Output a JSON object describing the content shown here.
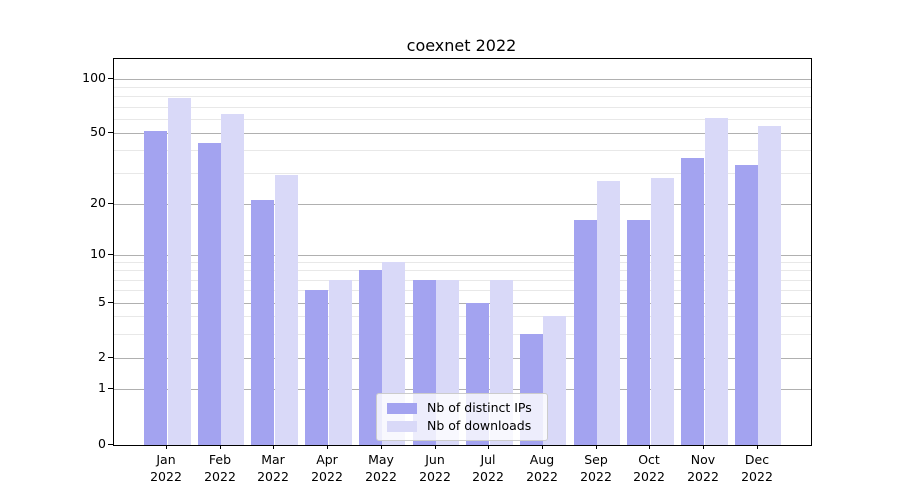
{
  "title": "coexnet 2022",
  "chart_data": {
    "type": "bar",
    "title": "coexnet 2022",
    "xlabel": "",
    "ylabel": "",
    "yscale": "symlog-like",
    "ylim": [
      0,
      120
    ],
    "grid": true,
    "legend_position": "lower center",
    "categories": [
      "Jan 2022",
      "Feb 2022",
      "Mar 2022",
      "Apr 2022",
      "May 2022",
      "Jun 2022",
      "Jul 2022",
      "Aug 2022",
      "Sep 2022",
      "Oct 2022",
      "Nov 2022",
      "Dec 2022"
    ],
    "y_ticks": [
      0,
      1,
      2,
      5,
      10,
      20,
      50,
      100
    ],
    "y_minor_gridlines": [
      3,
      4,
      6,
      7,
      8,
      9,
      30,
      40,
      60,
      70,
      80,
      90
    ],
    "series": [
      {
        "name": "Nb of distinct IPs",
        "color": "#a3a3f0",
        "values": [
          51,
          44,
          21,
          6,
          8,
          7,
          5,
          3,
          16,
          16,
          36,
          33
        ]
      },
      {
        "name": "Nb of downloads",
        "color": "#d9d9f8",
        "values": [
          78,
          64,
          29,
          7,
          9,
          7,
          7,
          4,
          27,
          28,
          61,
          55
        ]
      }
    ]
  }
}
